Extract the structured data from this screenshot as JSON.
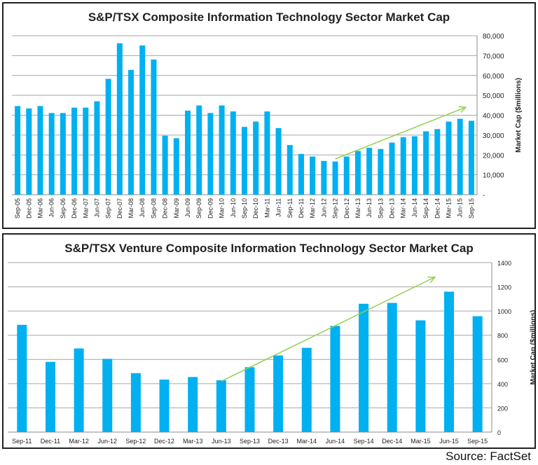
{
  "source": "Source: FactSet",
  "colors": {
    "bar": "#00b0f0",
    "trend_arrow": "#92d050",
    "grid": "#a6a6a6"
  },
  "chart_data": [
    {
      "type": "bar",
      "title": "S&P/TSX Composite Information Technology Sector Market Cap",
      "ylabel": "Market Cap ($millions)",
      "ylim": [
        0,
        80000
      ],
      "yticks": [
        "-",
        "10,000",
        "20,000",
        "30,000",
        "40,000",
        "50,000",
        "60,000",
        "70,000",
        "80,000"
      ],
      "grid": true,
      "y_axis_side": "right",
      "categories": [
        "Sep-05",
        "Dec-05",
        "Mar-06",
        "Jun-06",
        "Sep-06",
        "Dec-06",
        "Mar-07",
        "Jun-07",
        "Sep-07",
        "Dec-07",
        "Mar-08",
        "Jun-08",
        "Sep-08",
        "Dec-08",
        "Mar-09",
        "Jun-09",
        "Sep-09",
        "Dec-09",
        "Mar-10",
        "Jun-10",
        "Sep-10",
        "Dec-10",
        "Mar-11",
        "Jun-11",
        "Sep-11",
        "Dec-11",
        "Mar-12",
        "Jun-12",
        "Sep-12",
        "Dec-12",
        "Mar-13",
        "Jun-13",
        "Sep-13",
        "Dec-13",
        "Mar-14",
        "Jun-14",
        "Sep-14",
        "Dec-14",
        "Mar-15",
        "Jun-15",
        "Sep-15"
      ],
      "values": [
        44600,
        43400,
        44600,
        41100,
        41100,
        43800,
        43800,
        47000,
        58300,
        76200,
        62800,
        75100,
        68000,
        29700,
        28400,
        42300,
        44900,
        41100,
        44900,
        41900,
        34100,
        36800,
        41900,
        33500,
        25000,
        20500,
        19200,
        17000,
        16700,
        19200,
        22000,
        23600,
        23000,
        26200,
        28900,
        29400,
        31900,
        33000,
        36800,
        38200,
        37200
      ],
      "annotations": [
        {
          "type": "trend-arrow",
          "from": [
            "Sep-12",
            18000
          ],
          "to": [
            "Sep-15",
            44000
          ]
        }
      ]
    },
    {
      "type": "bar",
      "title": "S&P/TSX Venture Composite Information Technology Sector Market Cap",
      "ylabel": "Market Cap ($millions)",
      "ylim": [
        0,
        1400
      ],
      "yticks": [
        "0",
        "200",
        "400",
        "600",
        "800",
        "1000",
        "1200",
        "1400"
      ],
      "grid": true,
      "y_axis_side": "right",
      "categories": [
        "Sep-11",
        "Dec-11",
        "Mar-12",
        "Jun-12",
        "Sep-12",
        "Dec-12",
        "Mar-13",
        "Jun-13",
        "Sep-13",
        "Dec-13",
        "Mar-14",
        "Jun-14",
        "Sep-14",
        "Dec-14",
        "Mar-15",
        "Jun-15",
        "Sep-15"
      ],
      "values": [
        886,
        580,
        691,
        605,
        487,
        434,
        455,
        428,
        536,
        633,
        696,
        877,
        1060,
        1067,
        923,
        1160,
        957
      ],
      "annotations": [
        {
          "type": "trend-arrow",
          "from": [
            "Jun-13",
            420
          ],
          "to": [
            "Jun-15",
            1280
          ]
        }
      ]
    }
  ]
}
